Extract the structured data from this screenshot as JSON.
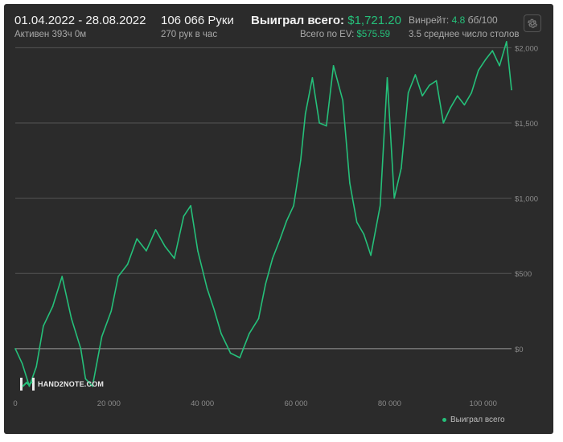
{
  "header": {
    "date_range": "01.04.2022 - 28.08.2022",
    "active_time": "Активен 393ч 0м",
    "hands": "106 066 Руки",
    "hands_per_hour": "270 рук в час",
    "won_label": "Выиграл всего:",
    "won_value": "$1,721.20",
    "ev_label": "Всего по EV:",
    "ev_value": "$575.59",
    "winrate_label": "Винрейт:",
    "winrate_value": "4.8",
    "winrate_unit": "бб/100",
    "tables": "3.5 среднее число столов",
    "settings_icon": "gear-icon"
  },
  "logo": {
    "text": "HAND2NOTE.COM"
  },
  "legend": {
    "label": "Выиграл всего"
  },
  "colors": {
    "line": "#25c07a",
    "background": "#2b2b2b",
    "grid": "#555555",
    "zero_line": "#9a9a9a"
  },
  "chart_data": {
    "type": "line",
    "title": "",
    "xlabel": "",
    "ylabel": "",
    "x_ticks": [
      "0",
      "20 000",
      "40 000",
      "60 000",
      "80 000",
      "100 000"
    ],
    "y_ticks": [
      "$2,000",
      "$1,500",
      "$1,000",
      "$500",
      "$0"
    ],
    "xlim": [
      0,
      106066
    ],
    "ylim": [
      -300,
      2130
    ],
    "grid": true,
    "legend_position": "bottom-right",
    "series": [
      {
        "name": "Выиграл всего",
        "x": [
          0,
          1500,
          3000,
          4500,
          6000,
          8000,
          10000,
          12000,
          14000,
          15000,
          16500,
          18500,
          20500,
          22000,
          24000,
          26000,
          28000,
          30000,
          32000,
          34000,
          36000,
          37500,
          39000,
          41000,
          42500,
          44000,
          46000,
          48000,
          50000,
          52000,
          53500,
          55000,
          56500,
          58000,
          59500,
          61000,
          62000,
          63500,
          65000,
          66500,
          68000,
          70000,
          71500,
          73000,
          74500,
          76000,
          78000,
          79500,
          81000,
          82500,
          84000,
          85500,
          87000,
          88500,
          90000,
          91500,
          93000,
          94500,
          96000,
          97500,
          99000,
          100500,
          102000,
          103500,
          105000,
          106066
        ],
        "y": [
          0,
          -100,
          -250,
          -120,
          150,
          280,
          480,
          200,
          0,
          -200,
          -250,
          80,
          250,
          480,
          560,
          730,
          650,
          790,
          680,
          600,
          880,
          950,
          650,
          400,
          260,
          100,
          -30,
          -60,
          100,
          200,
          430,
          600,
          720,
          850,
          950,
          1250,
          1560,
          1800,
          1500,
          1480,
          1880,
          1650,
          1100,
          840,
          760,
          620,
          950,
          1800,
          1000,
          1200,
          1700,
          1820,
          1680,
          1750,
          1780,
          1500,
          1600,
          1680,
          1620,
          1700,
          1850,
          1920,
          1980,
          1880,
          2040,
          1721
        ]
      }
    ]
  }
}
